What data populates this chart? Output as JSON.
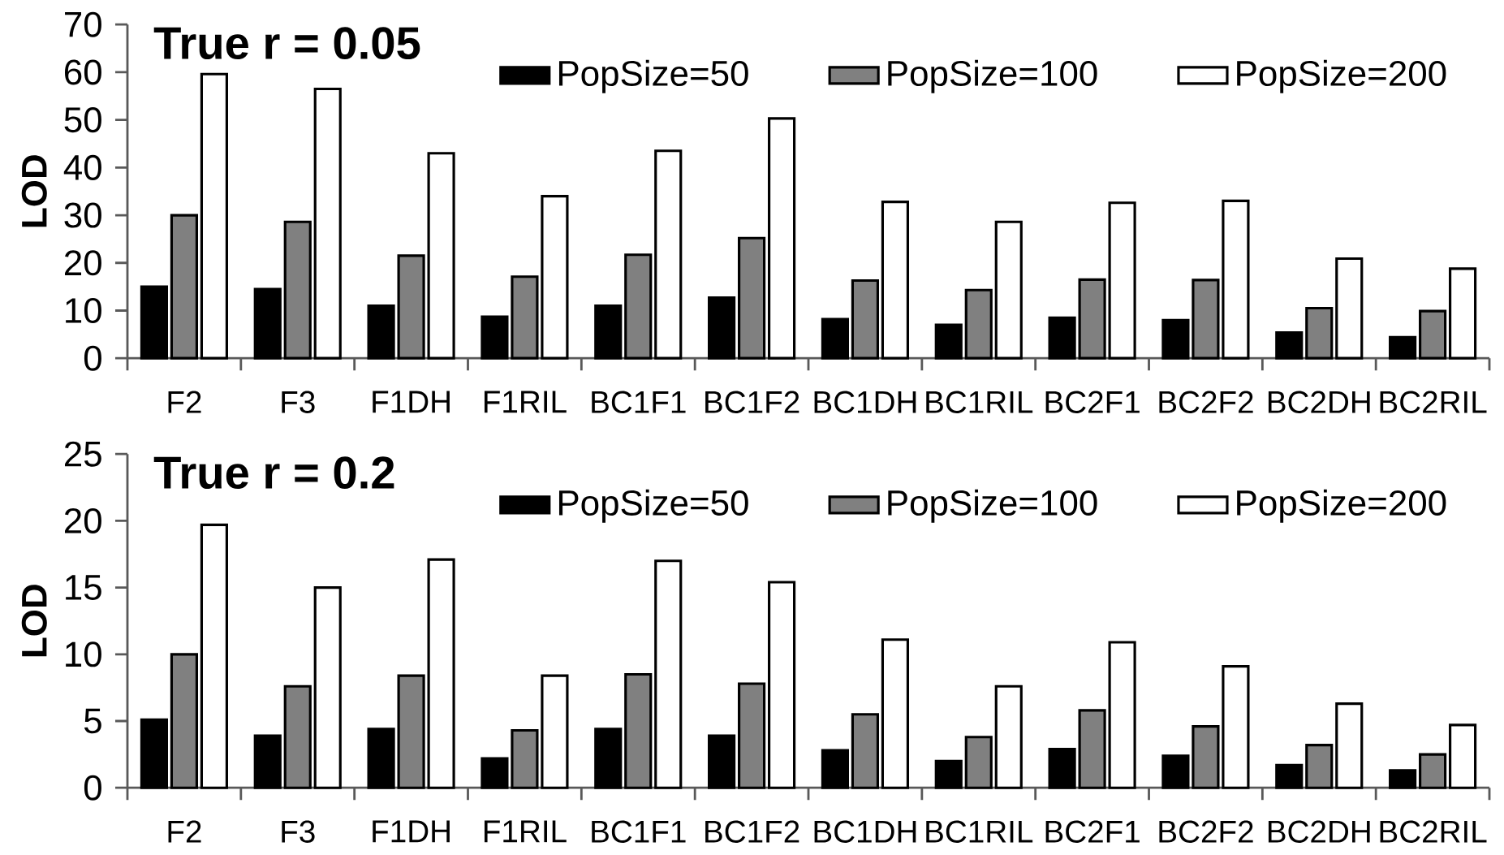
{
  "chart_data": [
    {
      "type": "bar",
      "title": "True r = 0.05",
      "ylabel": "LOD",
      "categories": [
        "F2",
        "F3",
        "F1DH",
        "F1RIL",
        "BC1F1",
        "BC1F2",
        "BC1DH",
        "BC1RIL",
        "BC2F1",
        "BC2F2",
        "BC2DH",
        "BC2RIL"
      ],
      "series": [
        {
          "name": "PopSize=50",
          "color": "#000000",
          "values": [
            15,
            14.5,
            11,
            8.7,
            11,
            12.7,
            8.2,
            7,
            8.5,
            8,
            5.4,
            4.4
          ]
        },
        {
          "name": "PopSize=100",
          "color": "#808080",
          "values": [
            30,
            28.6,
            21.5,
            17.1,
            21.7,
            25.2,
            16.3,
            14.3,
            16.5,
            16.4,
            10.5,
            9.9
          ]
        },
        {
          "name": "PopSize=200",
          "color": "#ffffff",
          "values": [
            59.6,
            56.5,
            43,
            34,
            43.5,
            50.3,
            32.8,
            28.6,
            32.6,
            33,
            20.9,
            18.8
          ]
        }
      ],
      "ylim": [
        0,
        70
      ],
      "yticks": [
        0,
        10,
        20,
        30,
        40,
        50,
        60,
        70
      ],
      "legend": "top right",
      "grid": false
    },
    {
      "type": "bar",
      "title": "True r = 0.2",
      "ylabel": "LOD",
      "categories": [
        "F2",
        "F3",
        "F1DH",
        "F1RIL",
        "BC1F1",
        "BC1F2",
        "BC1DH",
        "BC1RIL",
        "BC2F1",
        "BC2F2",
        "BC2DH",
        "BC2RIL"
      ],
      "series": [
        {
          "name": "PopSize=50",
          "color": "#000000",
          "values": [
            5.1,
            3.9,
            4.4,
            2.2,
            4.4,
            3.9,
            2.8,
            2,
            2.9,
            2.4,
            1.7,
            1.3
          ]
        },
        {
          "name": "PopSize=100",
          "color": "#808080",
          "values": [
            10,
            7.6,
            8.4,
            4.3,
            8.5,
            7.8,
            5.5,
            3.8,
            5.8,
            4.6,
            3.2,
            2.5
          ]
        },
        {
          "name": "PopSize=200",
          "color": "#ffffff",
          "values": [
            19.7,
            15,
            17.1,
            8.4,
            17,
            15.4,
            11.1,
            7.6,
            10.9,
            9.1,
            6.3,
            4.7
          ]
        }
      ],
      "ylim": [
        0,
        25
      ],
      "yticks": [
        0,
        5,
        10,
        15,
        20,
        25
      ],
      "legend": "top right",
      "grid": false
    }
  ]
}
